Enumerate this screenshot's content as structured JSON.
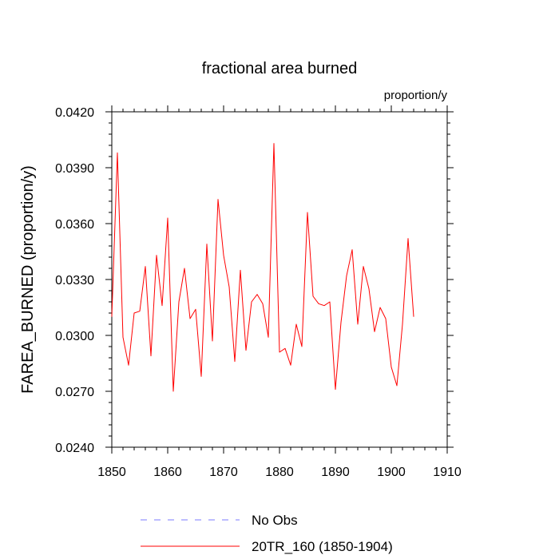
{
  "chart_data": {
    "type": "line",
    "title": "fractional area burned",
    "units_label": "proportion/y",
    "xlabel": "",
    "ylabel": "FAREA_BURNED  (proportion/y)",
    "xlim": [
      1850,
      1910
    ],
    "ylim": [
      0.024,
      0.042
    ],
    "x_ticks": [
      1850,
      1860,
      1870,
      1880,
      1890,
      1900,
      1910
    ],
    "x_tick_labels": [
      "1850",
      "1860",
      "1870",
      "1880",
      "1890",
      "1900",
      "1910"
    ],
    "y_ticks": [
      0.024,
      0.027,
      0.03,
      0.033,
      0.036,
      0.039,
      0.042
    ],
    "y_tick_labels": [
      "0.0240",
      "0.0270",
      "0.0300",
      "0.0330",
      "0.0360",
      "0.0390",
      "0.0420"
    ],
    "series": [
      {
        "name": "20TR_160 (1850-1904)",
        "color": "#ff0000",
        "x": [
          1850,
          1851,
          1852,
          1853,
          1854,
          1855,
          1856,
          1857,
          1858,
          1859,
          1860,
          1861,
          1862,
          1863,
          1864,
          1865,
          1866,
          1867,
          1868,
          1869,
          1870,
          1871,
          1872,
          1873,
          1874,
          1875,
          1876,
          1877,
          1878,
          1879,
          1880,
          1881,
          1882,
          1883,
          1884,
          1885,
          1886,
          1887,
          1888,
          1889,
          1890,
          1891,
          1892,
          1893,
          1894,
          1895,
          1896,
          1897,
          1898,
          1899,
          1900,
          1901,
          1902,
          1903,
          1904
        ],
        "values": [
          0.031,
          0.0398,
          0.0299,
          0.0284,
          0.0312,
          0.0313,
          0.0337,
          0.0289,
          0.0343,
          0.0316,
          0.0363,
          0.027,
          0.0318,
          0.0336,
          0.0309,
          0.0314,
          0.0278,
          0.0349,
          0.0297,
          0.0373,
          0.0343,
          0.0326,
          0.0286,
          0.0335,
          0.0292,
          0.0318,
          0.0322,
          0.0317,
          0.0299,
          0.0403,
          0.0291,
          0.0293,
          0.0284,
          0.0306,
          0.0294,
          0.0366,
          0.0321,
          0.0317,
          0.0316,
          0.0318,
          0.0271,
          0.0307,
          0.0332,
          0.0346,
          0.0306,
          0.0337,
          0.0325,
          0.0302,
          0.0315,
          0.0309,
          0.0283,
          0.0273,
          0.0306,
          0.0352,
          0.031
        ]
      }
    ],
    "legend": [
      {
        "label": "No Obs",
        "color": "#7b7bff",
        "style": "dashed"
      },
      {
        "label": "20TR_160 (1850-1904)",
        "color": "#ff0000",
        "style": "solid"
      }
    ],
    "legend_position": "bottom"
  }
}
